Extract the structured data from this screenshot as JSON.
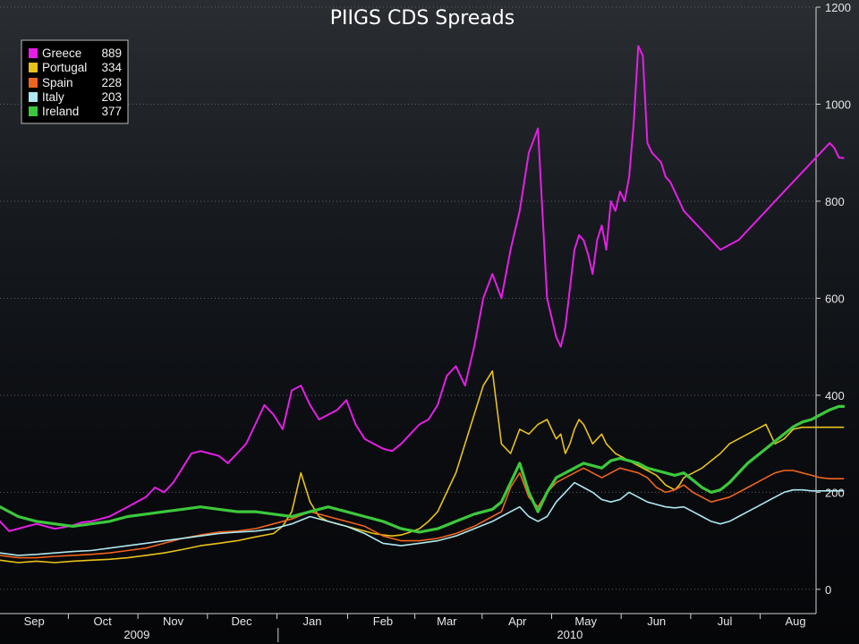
{
  "chart_data": {
    "type": "line",
    "title": "PIIGS CDS Spreads",
    "ylim": [
      -50,
      1200
    ],
    "y_ticks": [
      0,
      200,
      400,
      600,
      800,
      1000,
      1200
    ],
    "y_tick_labels": [
      "0",
      "200",
      "400",
      "600",
      "800",
      "1000",
      "1200"
    ],
    "x_axis": {
      "start_day": 0,
      "end_day": 358,
      "months": [
        {
          "label": "Sep",
          "pos": 15
        },
        {
          "label": "Oct",
          "pos": 45
        },
        {
          "label": "Nov",
          "pos": 76
        },
        {
          "label": "Dec",
          "pos": 106
        },
        {
          "label": "Jan",
          "pos": 137
        },
        {
          "label": "Feb",
          "pos": 168
        },
        {
          "label": "Mar",
          "pos": 196
        },
        {
          "label": "Apr",
          "pos": 227
        },
        {
          "label": "May",
          "pos": 257
        },
        {
          "label": "Jun",
          "pos": 288
        },
        {
          "label": "Jul",
          "pos": 318
        },
        {
          "label": "Aug",
          "pos": 349
        }
      ],
      "years": [
        {
          "label": "2009",
          "pos": 60
        },
        {
          "label": "2010",
          "pos": 250
        }
      ],
      "year_divider": 122
    },
    "legend": {
      "position": "top-left",
      "items": [
        {
          "name": "Greece",
          "value": "889",
          "color": "#e61ee6"
        },
        {
          "name": "Portugal",
          "value": "334",
          "color": "#e8c21a"
        },
        {
          "name": "Spain",
          "value": "228",
          "color": "#f0641e"
        },
        {
          "name": "Italy",
          "value": "203",
          "color": "#aee8f0"
        },
        {
          "name": "Ireland",
          "value": "377",
          "color": "#3cc83c"
        }
      ]
    },
    "series": [
      {
        "name": "Greece",
        "color": "#e61ee6",
        "width": 2,
        "x": [
          0,
          4,
          8,
          12,
          16,
          20,
          24,
          28,
          32,
          36,
          40,
          44,
          48,
          52,
          56,
          60,
          64,
          68,
          72,
          76,
          80,
          84,
          88,
          92,
          96,
          100,
          104,
          108,
          112,
          116,
          120,
          124,
          128,
          132,
          136,
          140,
          144,
          148,
          152,
          156,
          160,
          164,
          168,
          172,
          176,
          180,
          184,
          188,
          192,
          196,
          200,
          204,
          208,
          212,
          216,
          220,
          224,
          228,
          232,
          236,
          240,
          242,
          244,
          246,
          248,
          250,
          252,
          254,
          256,
          258,
          260,
          262,
          264,
          266,
          268,
          270,
          272,
          274,
          276,
          278,
          280,
          282,
          284,
          286,
          288,
          290,
          292,
          294,
          296,
          298,
          300,
          304,
          308,
          312,
          316,
          320,
          324,
          328,
          332,
          336,
          340,
          344,
          348,
          352,
          356,
          360,
          364,
          366,
          368,
          370
        ],
        "y": [
          140,
          120,
          125,
          130,
          135,
          130,
          125,
          128,
          132,
          138,
          140,
          145,
          150,
          160,
          170,
          180,
          190,
          210,
          200,
          220,
          250,
          280,
          285,
          280,
          275,
          260,
          280,
          300,
          340,
          380,
          360,
          330,
          410,
          420,
          380,
          350,
          360,
          370,
          390,
          340,
          310,
          300,
          290,
          285,
          300,
          320,
          340,
          350,
          380,
          440,
          460,
          420,
          500,
          600,
          650,
          600,
          700,
          780,
          900,
          950,
          600,
          560,
          520,
          500,
          540,
          620,
          700,
          730,
          720,
          690,
          650,
          720,
          750,
          700,
          800,
          780,
          820,
          800,
          850,
          960,
          1120,
          1100,
          920,
          900,
          890,
          880,
          850,
          840,
          820,
          800,
          780,
          760,
          740,
          720,
          700,
          710,
          720,
          740,
          760,
          780,
          800,
          820,
          840,
          860,
          880,
          900,
          920,
          910,
          890,
          889
        ]
      },
      {
        "name": "Portugal",
        "color": "#e8c21a",
        "width": 1.6,
        "x": [
          0,
          8,
          16,
          24,
          32,
          40,
          48,
          56,
          64,
          72,
          80,
          88,
          96,
          104,
          112,
          120,
          124,
          128,
          132,
          136,
          140,
          144,
          148,
          152,
          156,
          160,
          164,
          168,
          172,
          176,
          180,
          184,
          188,
          192,
          196,
          200,
          204,
          208,
          212,
          216,
          220,
          224,
          228,
          232,
          236,
          240,
          242,
          244,
          246,
          248,
          250,
          252,
          254,
          256,
          258,
          260,
          262,
          264,
          266,
          268,
          270,
          272,
          274,
          276,
          278,
          280,
          282,
          284,
          286,
          288,
          290,
          292,
          294,
          296,
          298,
          300,
          304,
          308,
          312,
          316,
          320,
          324,
          328,
          332,
          336,
          340,
          344,
          348,
          352,
          356,
          360,
          364,
          366,
          368,
          370
        ],
        "y": [
          60,
          55,
          58,
          55,
          58,
          60,
          62,
          65,
          70,
          75,
          82,
          90,
          95,
          100,
          108,
          115,
          130,
          160,
          240,
          180,
          150,
          140,
          135,
          130,
          125,
          120,
          115,
          112,
          110,
          112,
          118,
          125,
          140,
          160,
          200,
          240,
          300,
          360,
          420,
          450,
          300,
          280,
          330,
          320,
          340,
          350,
          330,
          310,
          320,
          280,
          300,
          330,
          350,
          340,
          320,
          300,
          310,
          320,
          300,
          290,
          280,
          275,
          270,
          265,
          260,
          255,
          250,
          245,
          240,
          235,
          225,
          215,
          210,
          205,
          215,
          230,
          240,
          250,
          265,
          280,
          300,
          310,
          320,
          330,
          340,
          300,
          310,
          330,
          334,
          334,
          334,
          334,
          334,
          334,
          334
        ]
      },
      {
        "name": "Spain",
        "color": "#f0641e",
        "width": 1.6,
        "x": [
          0,
          8,
          16,
          24,
          32,
          40,
          48,
          56,
          64,
          72,
          80,
          88,
          96,
          104,
          112,
          120,
          128,
          136,
          144,
          152,
          160,
          168,
          176,
          184,
          192,
          200,
          208,
          216,
          220,
          224,
          228,
          232,
          236,
          240,
          244,
          248,
          252,
          256,
          260,
          264,
          268,
          272,
          276,
          280,
          284,
          288,
          292,
          296,
          300,
          304,
          308,
          312,
          316,
          320,
          324,
          328,
          332,
          336,
          340,
          344,
          348,
          352,
          356,
          360,
          364,
          368,
          370
        ],
        "y": [
          70,
          65,
          65,
          68,
          70,
          72,
          75,
          80,
          85,
          95,
          105,
          112,
          118,
          120,
          125,
          135,
          145,
          160,
          150,
          140,
          130,
          110,
          100,
          100,
          105,
          115,
          130,
          150,
          160,
          210,
          240,
          190,
          170,
          200,
          220,
          230,
          240,
          250,
          240,
          230,
          240,
          250,
          245,
          240,
          230,
          210,
          200,
          205,
          215,
          200,
          190,
          180,
          185,
          190,
          200,
          210,
          220,
          230,
          240,
          245,
          245,
          240,
          235,
          230,
          228,
          228,
          228
        ]
      },
      {
        "name": "Italy",
        "color": "#aee8f0",
        "width": 1.6,
        "x": [
          0,
          8,
          16,
          24,
          32,
          40,
          48,
          56,
          64,
          72,
          80,
          88,
          96,
          104,
          112,
          120,
          128,
          136,
          144,
          152,
          160,
          168,
          176,
          184,
          192,
          200,
          208,
          216,
          220,
          224,
          228,
          232,
          236,
          240,
          244,
          248,
          252,
          256,
          260,
          264,
          268,
          272,
          276,
          280,
          284,
          288,
          292,
          296,
          300,
          304,
          308,
          312,
          316,
          320,
          324,
          328,
          332,
          336,
          340,
          344,
          348,
          352,
          356,
          360,
          364,
          368,
          370
        ],
        "y": [
          75,
          70,
          72,
          75,
          78,
          80,
          85,
          90,
          95,
          100,
          105,
          110,
          115,
          118,
          120,
          125,
          135,
          150,
          140,
          130,
          115,
          95,
          90,
          95,
          100,
          110,
          125,
          140,
          150,
          160,
          170,
          150,
          140,
          150,
          180,
          200,
          220,
          210,
          200,
          185,
          180,
          185,
          200,
          190,
          180,
          175,
          170,
          168,
          170,
          160,
          150,
          140,
          135,
          140,
          150,
          160,
          170,
          180,
          190,
          200,
          205,
          205,
          203,
          203,
          203,
          203,
          203
        ]
      },
      {
        "name": "Ireland",
        "color": "#3cc83c",
        "width": 3.2,
        "x": [
          0,
          8,
          16,
          24,
          32,
          40,
          48,
          56,
          64,
          72,
          80,
          88,
          96,
          104,
          112,
          120,
          128,
          136,
          144,
          152,
          160,
          168,
          176,
          184,
          192,
          200,
          208,
          216,
          220,
          224,
          228,
          232,
          236,
          240,
          244,
          248,
          252,
          256,
          260,
          264,
          268,
          272,
          276,
          280,
          284,
          288,
          292,
          296,
          300,
          304,
          308,
          312,
          316,
          320,
          324,
          328,
          332,
          336,
          340,
          344,
          348,
          352,
          356,
          360,
          364,
          368,
          370
        ],
        "y": [
          170,
          150,
          140,
          135,
          130,
          135,
          140,
          150,
          155,
          160,
          165,
          170,
          165,
          160,
          160,
          155,
          150,
          160,
          170,
          160,
          150,
          140,
          125,
          118,
          125,
          140,
          155,
          165,
          180,
          220,
          260,
          200,
          160,
          200,
          230,
          240,
          250,
          260,
          255,
          250,
          265,
          270,
          265,
          260,
          250,
          245,
          240,
          235,
          240,
          225,
          210,
          200,
          205,
          220,
          240,
          260,
          275,
          290,
          305,
          320,
          335,
          345,
          350,
          360,
          370,
          377,
          377
        ]
      }
    ]
  }
}
